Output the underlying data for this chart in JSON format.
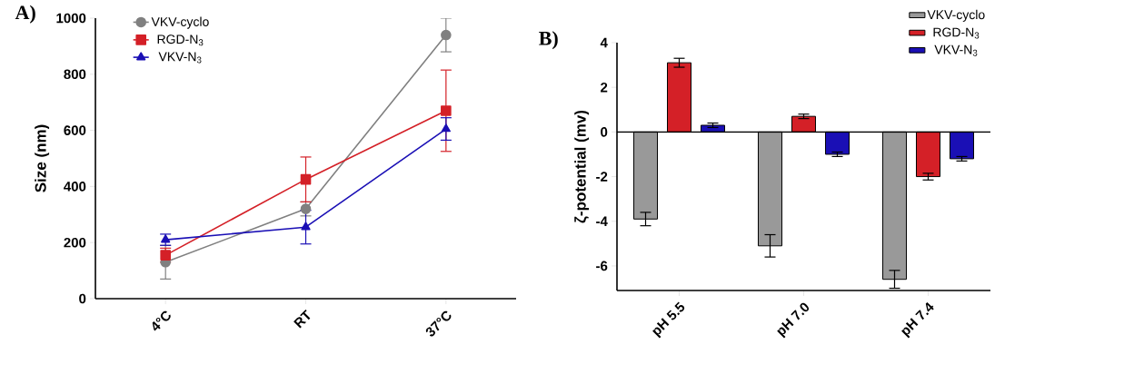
{
  "chart_data": [
    {
      "type": "line",
      "title": "A)",
      "ylabel": "Size (nm)",
      "categories": [
        "4°C",
        "RT",
        "37°C"
      ],
      "ylim": [
        0,
        1000
      ],
      "yticks": [
        0,
        200,
        400,
        600,
        800,
        1000
      ],
      "legend": "top left",
      "series": [
        {
          "name": "VKV-cyclo",
          "color": "#808080",
          "marker": "circle",
          "values": [
            130,
            320,
            940
          ],
          "errors": [
            60,
            25,
            60
          ]
        },
        {
          "name": "RGD-N$_{3}$",
          "color": "#d42027",
          "marker": "square",
          "values": [
            155,
            425,
            670
          ],
          "errors": [
            25,
            80,
            145
          ]
        },
        {
          "name": "VKV-N$_{3}$",
          "color": "#1a0fb5",
          "marker": "triangle",
          "values": [
            210,
            255,
            605
          ],
          "errors": [
            20,
            60,
            40
          ]
        }
      ]
    },
    {
      "type": "bar",
      "title": "B)",
      "ylabel": "ζ-potential (mv)",
      "categories": [
        "pH 5.5",
        "pH 7.0",
        "pH 7.4"
      ],
      "ylim": [
        -7.1,
        4
      ],
      "yticks": [
        -6,
        -4,
        -2,
        0,
        2,
        4
      ],
      "legend": "top right",
      "ref_lines": [
        {
          "axis": "y",
          "value": 0
        }
      ],
      "series": [
        {
          "name": "VKV-cyclo",
          "color": "#999999",
          "values": [
            -3.9,
            -5.1,
            -6.6
          ],
          "errors": [
            0.3,
            0.5,
            0.4
          ]
        },
        {
          "name": "RGD-N$_{3}$",
          "color": "#d42027",
          "values": [
            3.1,
            0.7,
            -2.0
          ],
          "errors": [
            0.2,
            0.1,
            0.15
          ]
        },
        {
          "name": "VKV-N$_{3}$",
          "color": "#1a0fb5",
          "values": [
            0.3,
            -1.0,
            -1.2
          ],
          "errors": [
            0.1,
            0.1,
            0.1
          ]
        }
      ]
    }
  ]
}
